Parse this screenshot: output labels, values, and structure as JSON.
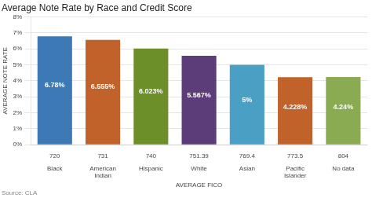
{
  "chart_data": {
    "type": "bar",
    "title": "Average Note Rate by Race and Credit Score",
    "categories": [
      "720\n\nBlack",
      "731\n\nAmerican\nIndian",
      "740\n\nHispanic",
      "751.39\n\nWhite",
      "769.4\n\nAsian",
      "773.5\n\nPacific\nIslander",
      "804\n\nNo data"
    ],
    "values": [
      6.78,
      6.555,
      6.023,
      5.567,
      5.0,
      4.228,
      4.24
    ],
    "value_labels": [
      "6.78%",
      "6.555%",
      "6.023%",
      "5.567%",
      "5%",
      "4.228%",
      "4.24%"
    ],
    "data_labels": true,
    "colors": [
      "#3d7ab5",
      "#c0622a",
      "#6d8f2a",
      "#5c3d7a",
      "#4a9fc4",
      "#c0622a",
      "#8aab52"
    ],
    "xlabel": "AVERAGE FICO",
    "ylabel": "AVERAGE NOTE RATE",
    "annotations": [
      "Source: CLA"
    ],
    "ylim": [
      0,
      8
    ],
    "yticks": [
      {
        "value": 0,
        "label": "0%"
      },
      {
        "value": 1,
        "label": "1%"
      },
      {
        "value": 2,
        "label": "2%"
      },
      {
        "value": 3,
        "label": "3%"
      },
      {
        "value": 4,
        "label": "4%"
      },
      {
        "value": 5,
        "label": "5%"
      },
      {
        "value": 6,
        "label": "6%"
      },
      {
        "value": 7,
        "label": "7%"
      },
      {
        "value": 8,
        "label": "8%"
      }
    ],
    "grid": true
  }
}
